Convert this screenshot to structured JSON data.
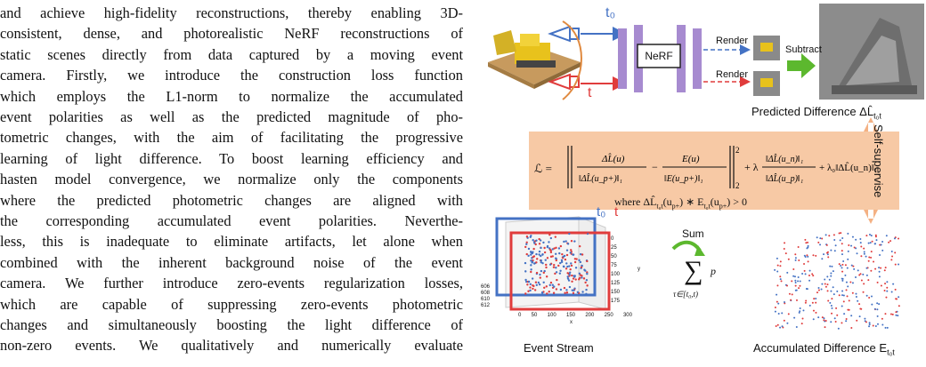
{
  "body_text": {
    "lines": [
      "and achieve high-fidelity reconstructions, thereby enabling 3D-",
      "consistent, dense, and photorealistic NeRF reconstructions of",
      "static scenes directly from data captured by a moving event",
      "camera. Firstly, we introduce the construction loss function",
      "which employs the L1-norm to normalize the accumulated",
      "event polarities as well as the predicted magnitude of pho-",
      "tometric changes, with the aim of facilitating the progressive",
      "learning of light difference. To boost learning efficiency and",
      "hasten model convergence, we normalize only the components",
      "where the predicted photometric changes are aligned with",
      "the corresponding accumulated event polarities. Neverthe-",
      "less, this is inadequate to eliminate artifacts, let alone when",
      "combined with the inherent background noise of the event",
      "camera. We further introduce zero-events regularization losses,",
      "which are capable of suppressing zero-events photometric",
      "changes and simultaneously boosting the light difference of",
      "non-zero events. We qualitatively and numerically evaluate"
    ]
  },
  "figure": {
    "colors": {
      "band": "#f7c9a5",
      "arrow_orange": "#f4b183",
      "green": "#5cb82e",
      "blue": "#4472c4",
      "red": "#e03c3c",
      "mlp": "#a78bd0"
    },
    "nerf_label": "NeRF",
    "render_label_1": "Render",
    "render_label_2": "Render",
    "subtract_label": "Subtract",
    "t0_label": "t₀",
    "t_label": "t",
    "predicted_caption": "Predicted Difference ΔL̂",
    "predicted_caption_sub": "t₀t",
    "self_supervise_label": "Self-supervise",
    "loss_lhs": "ℒ =",
    "loss_where": "where ΔL̂",
    "loss_where_sub": "t₀t",
    "loss_where_rest": "(u",
    "loss_where_rest2": ") ∗ E",
    "loss_where_rest3": "(u",
    "loss_where_rest4": ") > 0",
    "loss_where_plus": "p+",
    "stream_t0": "t₀",
    "stream_t": "t",
    "sum_label": "Sum",
    "sum_symbol": "∑",
    "sum_p": "p",
    "sum_range": "τ∈[t₀,t)",
    "event_stream_caption": "Event Stream",
    "accumulated_caption": "Accumulated Difference E",
    "accumulated_caption_sub": "t₀t",
    "axis_y_ticks": [
      "0",
      "25",
      "50",
      "75",
      "100",
      "125",
      "150",
      "175"
    ],
    "axis_x_ticks": [
      "0",
      "50",
      "100",
      "150",
      "200",
      "250",
      "300"
    ],
    "axis_x_label": "x",
    "axis_y_label": "y",
    "axis_z_ticks": [
      "606",
      "608",
      "610",
      "612"
    ]
  }
}
